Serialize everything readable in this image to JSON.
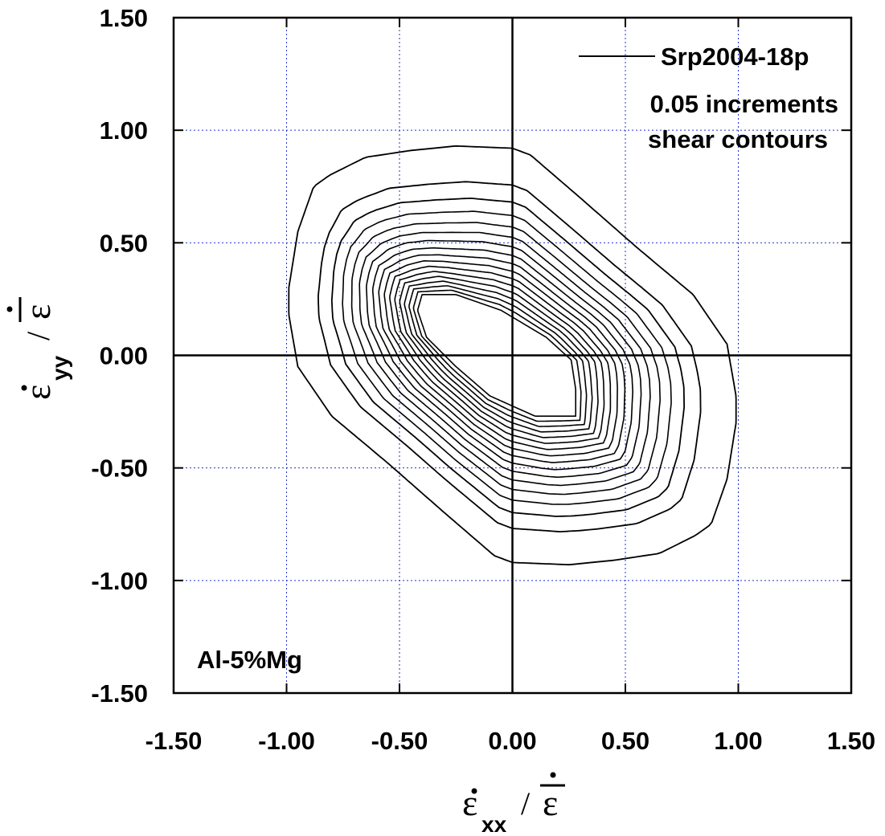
{
  "chart_data": {
    "type": "contour",
    "title": "",
    "xlabel": {
      "symbol": "ε",
      "subscript": "xx",
      "separator": "/",
      "denominator": "ε"
    },
    "ylabel": {
      "symbol": "ε",
      "subscript": "yy",
      "separator": "/",
      "denominator": "ε"
    },
    "xlim": [
      -1.5,
      1.5
    ],
    "ylim": [
      -1.5,
      1.5
    ],
    "x_ticks": [
      -1.5,
      -1.0,
      -0.5,
      0.0,
      0.5,
      1.0,
      1.5
    ],
    "y_ticks": [
      -1.5,
      -1.0,
      -0.5,
      0.0,
      0.5,
      1.0,
      1.5
    ],
    "x_tick_labels": [
      "-1.50",
      "-1.00",
      "-0.50",
      "0.00",
      "0.50",
      "1.00",
      "1.50"
    ],
    "y_tick_labels": [
      "-1.50",
      "-1.00",
      "-0.50",
      "0.00",
      "0.50",
      "1.00",
      "1.50"
    ],
    "grid": true,
    "grid_style": "dotted-blue",
    "legend": {
      "position": "top-right",
      "entries": [
        {
          "label": "Srp2004-18p",
          "style": "solid-black"
        }
      ]
    },
    "annotations": [
      "0.05 increments",
      "shear contours",
      "Al-5%Mg"
    ],
    "outer_contour": [
      [
        -0.81,
        0.8
      ],
      [
        -0.65,
        0.88
      ],
      [
        -0.45,
        0.91
      ],
      [
        -0.25,
        0.93
      ],
      [
        0.0,
        0.92
      ],
      [
        0.08,
        0.89
      ],
      [
        0.3,
        0.7
      ],
      [
        0.55,
        0.48
      ],
      [
        0.8,
        0.27
      ],
      [
        0.95,
        0.05
      ],
      [
        0.99,
        -0.18
      ],
      [
        0.99,
        -0.3
      ],
      [
        0.95,
        -0.55
      ],
      [
        0.88,
        -0.75
      ],
      [
        0.81,
        -0.8
      ],
      [
        0.65,
        -0.88
      ],
      [
        0.45,
        -0.91
      ],
      [
        0.25,
        -0.93
      ],
      [
        0.0,
        -0.92
      ],
      [
        -0.08,
        -0.89
      ],
      [
        -0.3,
        -0.7
      ],
      [
        -0.55,
        -0.48
      ],
      [
        -0.8,
        -0.27
      ],
      [
        -0.95,
        -0.05
      ],
      [
        -0.99,
        0.18
      ],
      [
        -0.99,
        0.3
      ],
      [
        -0.95,
        0.55
      ],
      [
        -0.88,
        0.75
      ]
    ],
    "inner_contour": [
      [
        -0.4,
        0.27
      ],
      [
        -0.25,
        0.27
      ],
      [
        -0.05,
        0.2
      ],
      [
        0.15,
        0.08
      ],
      [
        0.26,
        -0.02
      ],
      [
        0.28,
        -0.15
      ],
      [
        0.28,
        -0.27
      ],
      [
        0.1,
        -0.27
      ],
      [
        -0.1,
        -0.18
      ],
      [
        -0.25,
        -0.05
      ],
      [
        -0.38,
        0.08
      ],
      [
        -0.42,
        0.2
      ]
    ],
    "contour_count": 17,
    "contour_increment": 0.05
  }
}
